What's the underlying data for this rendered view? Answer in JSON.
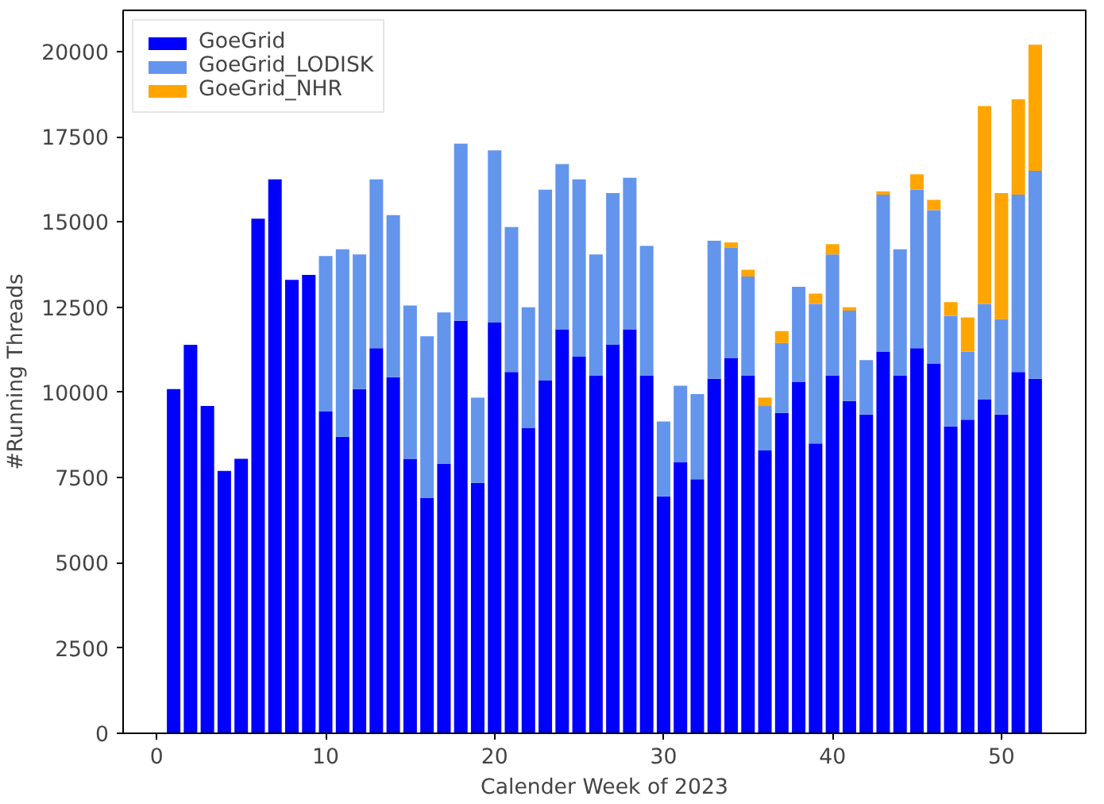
{
  "chart_data": {
    "type": "bar",
    "stacked": true,
    "xlabel": "Calender Week of 2023",
    "ylabel": "#Running Threads",
    "x": [
      1,
      2,
      3,
      4,
      5,
      6,
      7,
      8,
      9,
      10,
      11,
      12,
      13,
      14,
      15,
      16,
      17,
      18,
      19,
      20,
      21,
      22,
      23,
      24,
      25,
      26,
      27,
      28,
      29,
      30,
      31,
      32,
      33,
      34,
      35,
      36,
      37,
      38,
      39,
      40,
      41,
      42,
      43,
      44,
      45,
      46,
      47,
      48,
      49,
      50,
      51,
      52
    ],
    "series": [
      {
        "name": "GoeGrid",
        "color": "#0000ff",
        "values": [
          10100,
          11400,
          9600,
          7700,
          8050,
          15100,
          16250,
          13300,
          13450,
          9450,
          8700,
          10100,
          11300,
          10450,
          8050,
          6900,
          7900,
          12100,
          7350,
          12050,
          10600,
          8950,
          10350,
          11850,
          11050,
          10500,
          11400,
          11850,
          10500,
          6950,
          7950,
          7450,
          10400,
          11000,
          10500,
          8300,
          9400,
          10300,
          8500,
          10500,
          9750,
          9350,
          11200,
          10500,
          11300,
          10850,
          9000,
          9200,
          9800,
          9350,
          10600,
          10400
        ]
      },
      {
        "name": "GoeGrid_LODISK",
        "color": "#6495ed",
        "values": [
          null,
          null,
          null,
          null,
          null,
          null,
          null,
          null,
          null,
          4550,
          5500,
          3950,
          4950,
          4750,
          4500,
          4750,
          4450,
          5200,
          2500,
          5050,
          4250,
          3550,
          5600,
          4850,
          5200,
          3550,
          4450,
          4450,
          3800,
          2200,
          2250,
          2500,
          4050,
          3250,
          2900,
          1300,
          2050,
          2800,
          4100,
          3550,
          2650,
          1600,
          4600,
          3700,
          4650,
          4500,
          3250,
          2000,
          2800,
          2800,
          5200,
          6100
        ]
      },
      {
        "name": "GoeGrid_NHR",
        "color": "#ffa500",
        "values": [
          null,
          null,
          null,
          null,
          null,
          null,
          null,
          null,
          null,
          null,
          null,
          null,
          null,
          null,
          null,
          null,
          null,
          null,
          null,
          null,
          null,
          null,
          null,
          null,
          null,
          null,
          null,
          null,
          null,
          null,
          null,
          null,
          null,
          150,
          200,
          250,
          350,
          null,
          300,
          300,
          100,
          null,
          100,
          null,
          450,
          300,
          400,
          1000,
          5800,
          3700,
          2800,
          3700
        ]
      }
    ],
    "xlim": [
      -1.99,
      54.99
    ],
    "xticks": [
      0,
      10,
      20,
      30,
      40,
      50
    ],
    "ylim": [
      0,
      21210
    ],
    "yticks": [
      0,
      2500,
      5000,
      7500,
      10000,
      12500,
      15000,
      17500,
      20000
    ],
    "legend": "top left",
    "grid": false
  }
}
